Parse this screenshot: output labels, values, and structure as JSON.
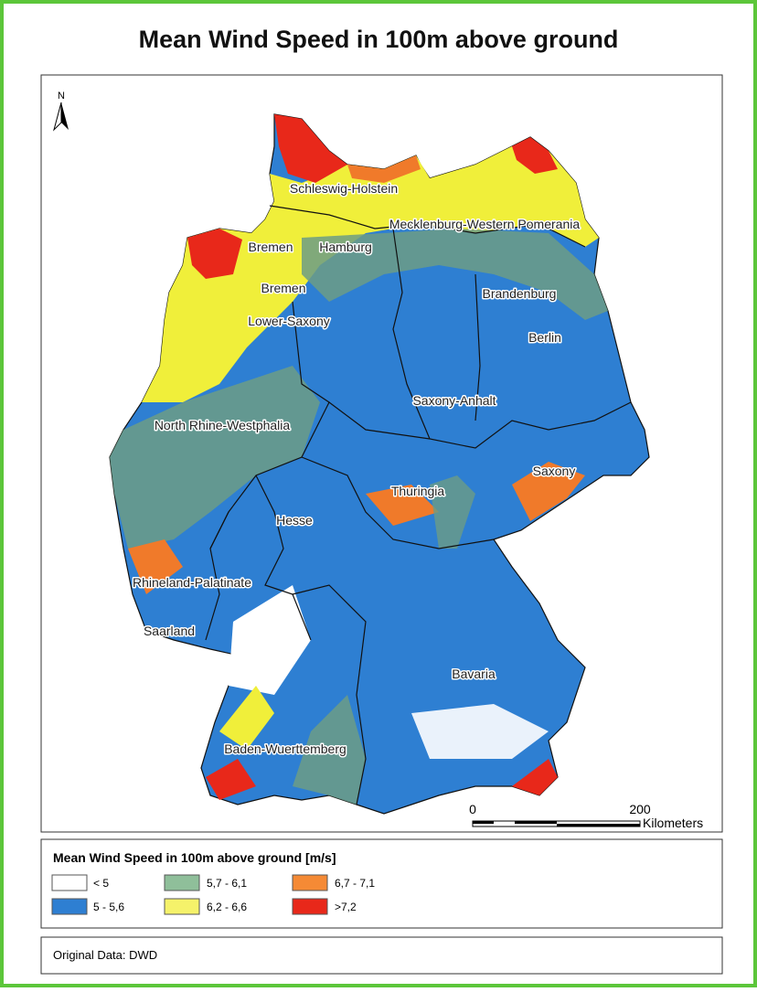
{
  "title": "Mean Wind Speed in 100m above ground",
  "north": "N",
  "states": [
    "Schleswig-Holstein",
    "Mecklenburg-Western Pomerania",
    "Bremen",
    "Hamburg",
    "Bremen",
    "Brandenburg",
    "Lower-Saxony",
    "Berlin",
    "Saxony-Anhalt",
    "North Rhine-Westphalia",
    "Saxony",
    "Thuringia",
    "Hesse",
    "Rhineland-Palatinate",
    "Saarland",
    "Bavaria",
    "Baden-Wuerttemberg"
  ],
  "scale": {
    "start": "0",
    "end": "200",
    "unit": "Kilometers"
  },
  "legend": {
    "title": "Mean Wind Speed in 100m above ground [m/s]",
    "items": [
      "< 5",
      "5 - 5,6",
      "5,7 - 6,1",
      "6,2 - 6,6",
      "6,7 - 7,1",
      ">7,2"
    ]
  },
  "source": "Original Data: DWD"
}
